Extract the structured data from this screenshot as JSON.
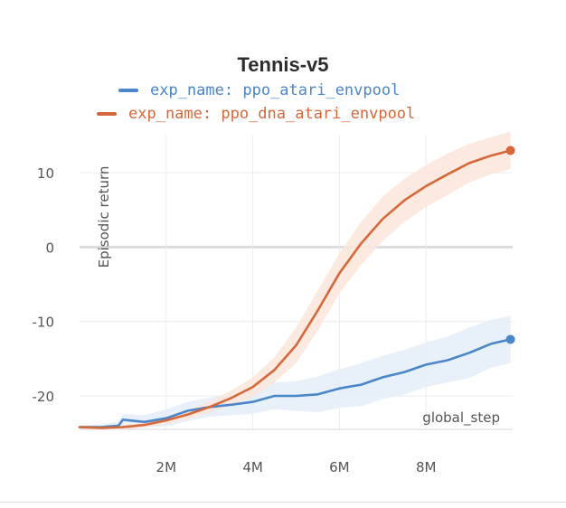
{
  "chart_data": {
    "type": "line",
    "title": "Tennis-v5",
    "xlabel": "global_step",
    "ylabel": "Episodic return",
    "xlim": [
      0,
      10000000
    ],
    "ylim": [
      -24.5,
      15
    ],
    "x_ticks": [
      2000000,
      4000000,
      6000000,
      8000000
    ],
    "x_tick_labels": [
      "2M",
      "4M",
      "6M",
      "8M"
    ],
    "y_ticks": [
      -20,
      -10,
      0,
      10
    ],
    "y_tick_labels": [
      "-20",
      "-10",
      "0",
      "10"
    ],
    "grid": true,
    "legend_position": "top",
    "series": [
      {
        "name": "exp_name: ppo_atari_envpool",
        "color": "#4a86c8",
        "band_color": "#e4eef8",
        "x": [
          0,
          500000,
          900000,
          1000000,
          1500000,
          2000000,
          2500000,
          3000000,
          3500000,
          4000000,
          4500000,
          5000000,
          5500000,
          6000000,
          6500000,
          7000000,
          7500000,
          8000000,
          8500000,
          9000000,
          9500000,
          9950000
        ],
        "values": [
          -24.2,
          -24.2,
          -24.0,
          -23.2,
          -23.5,
          -23.0,
          -22.0,
          -21.5,
          -21.2,
          -20.8,
          -20.0,
          -20.0,
          -19.8,
          -19.0,
          -18.5,
          -17.5,
          -16.8,
          -15.8,
          -15.2,
          -14.2,
          -13.0,
          -12.4
        ],
        "band_upper": [
          -24.0,
          -23.8,
          -23.4,
          -22.4,
          -22.6,
          -21.8,
          -20.8,
          -20.2,
          -19.8,
          -19.2,
          -18.2,
          -18.0,
          -17.4,
          -16.4,
          -15.6,
          -14.6,
          -13.8,
          -12.8,
          -12.0,
          -10.8,
          -9.8,
          -9.2
        ],
        "band_lower": [
          -24.4,
          -24.4,
          -24.5,
          -24.2,
          -24.2,
          -24.1,
          -23.4,
          -22.8,
          -22.6,
          -22.4,
          -21.8,
          -22.0,
          -22.2,
          -21.6,
          -21.4,
          -20.4,
          -19.8,
          -18.8,
          -18.2,
          -17.6,
          -16.2,
          -15.6
        ]
      },
      {
        "name": "exp_name: ppo_dna_atari_envpool",
        "color": "#d4683a",
        "band_color": "#fbe6dc",
        "x": [
          0,
          500000,
          1000000,
          1500000,
          2000000,
          2500000,
          3000000,
          3500000,
          4000000,
          4500000,
          5000000,
          5500000,
          6000000,
          6500000,
          7000000,
          7500000,
          8000000,
          8500000,
          9000000,
          9500000,
          9950000
        ],
        "values": [
          -24.2,
          -24.3,
          -24.2,
          -23.9,
          -23.3,
          -22.5,
          -21.5,
          -20.3,
          -18.8,
          -16.5,
          -13.2,
          -8.5,
          -3.5,
          0.5,
          3.8,
          6.3,
          8.2,
          9.8,
          11.3,
          12.3,
          13.0
        ],
        "band_upper": [
          -24.0,
          -24.0,
          -23.9,
          -23.5,
          -22.8,
          -21.9,
          -20.7,
          -19.3,
          -17.5,
          -14.8,
          -10.8,
          -5.8,
          -0.8,
          3.4,
          6.8,
          9.2,
          11.0,
          12.6,
          13.9,
          14.8,
          15.5
        ],
        "band_lower": [
          -24.4,
          -24.6,
          -24.5,
          -24.3,
          -23.8,
          -23.1,
          -22.3,
          -21.3,
          -20.1,
          -18.2,
          -15.6,
          -11.2,
          -6.2,
          -2.4,
          0.8,
          3.4,
          5.4,
          7.0,
          8.7,
          9.8,
          10.5
        ]
      }
    ]
  }
}
